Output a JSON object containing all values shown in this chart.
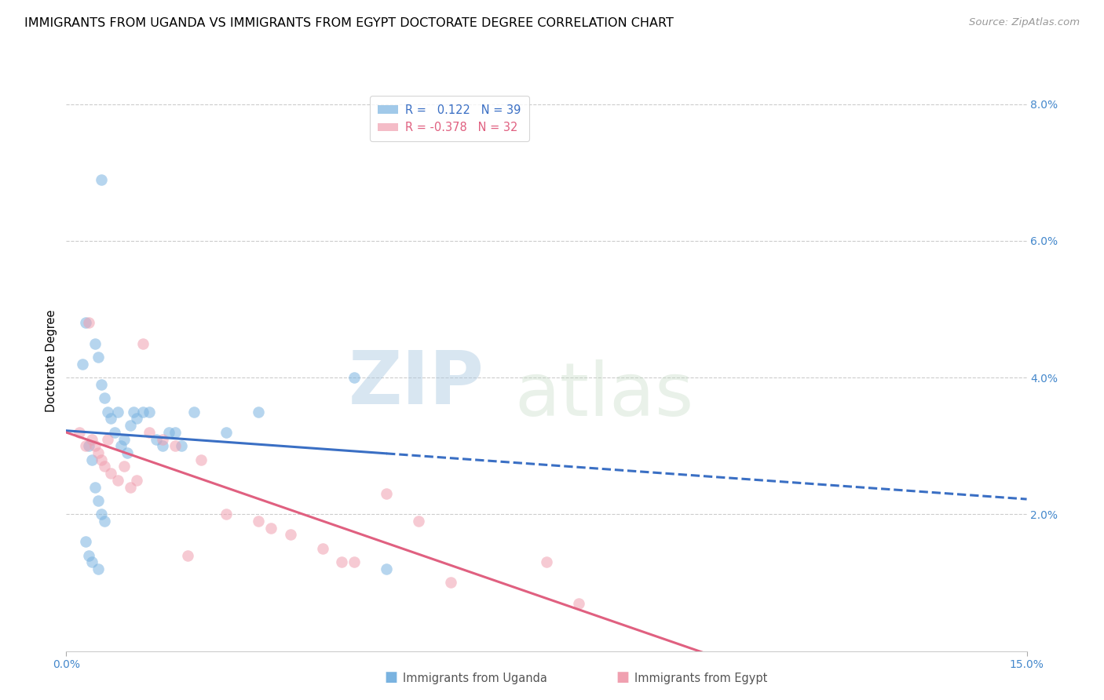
{
  "title": "IMMIGRANTS FROM UGANDA VS IMMIGRANTS FROM EGYPT DOCTORATE DEGREE CORRELATION CHART",
  "source": "Source: ZipAtlas.com",
  "ylabel": "Doctorate Degree",
  "xlim": [
    0.0,
    15.0
  ],
  "ylim": [
    0.0,
    8.5
  ],
  "xlabel_ticks": [
    "0.0%",
    "15.0%"
  ],
  "xlabel_vals": [
    0.0,
    15.0
  ],
  "ylabel_ticks": [
    "2.0%",
    "4.0%",
    "6.0%",
    "8.0%"
  ],
  "ylabel_vals": [
    2.0,
    4.0,
    6.0,
    8.0
  ],
  "legend_entry1": {
    "color": "#7ab3e0",
    "R": "0.122",
    "N": "39",
    "label": "Immigrants from Uganda"
  },
  "legend_entry2": {
    "color": "#f0a0b0",
    "R": "-0.378",
    "N": "32",
    "label": "Immigrants from Egypt"
  },
  "watermark_zip": "ZIP",
  "watermark_atlas": "atlas",
  "uganda_color": "#7ab3e0",
  "egypt_color": "#f0a0b0",
  "trendline_uganda_color": "#3a6fc4",
  "trendline_egypt_color": "#e06080",
  "uganda_x": [
    0.3,
    0.45,
    0.5,
    0.55,
    0.6,
    0.65,
    0.7,
    0.75,
    0.8,
    0.85,
    0.9,
    0.95,
    1.0,
    1.05,
    1.1,
    1.2,
    1.3,
    1.4,
    1.5,
    1.6,
    1.7,
    1.8,
    0.25,
    0.35,
    0.4,
    0.45,
    0.5,
    0.55,
    0.6,
    0.3,
    0.35,
    0.4,
    0.5,
    2.0,
    2.5,
    3.0,
    4.5,
    5.0,
    0.55
  ],
  "uganda_y": [
    4.8,
    4.5,
    4.3,
    3.9,
    3.7,
    3.5,
    3.4,
    3.2,
    3.5,
    3.0,
    3.1,
    2.9,
    3.3,
    3.5,
    3.4,
    3.5,
    3.5,
    3.1,
    3.0,
    3.2,
    3.2,
    3.0,
    4.2,
    3.0,
    2.8,
    2.4,
    2.2,
    2.0,
    1.9,
    1.6,
    1.4,
    1.3,
    1.2,
    3.5,
    3.2,
    3.5,
    4.0,
    1.2,
    6.9
  ],
  "egypt_x": [
    0.2,
    0.3,
    0.35,
    0.4,
    0.45,
    0.5,
    0.55,
    0.6,
    0.7,
    0.8,
    0.9,
    1.0,
    1.1,
    1.2,
    1.3,
    1.5,
    1.7,
    1.9,
    2.1,
    2.5,
    3.0,
    3.2,
    3.5,
    4.0,
    4.3,
    4.5,
    5.0,
    5.5,
    6.0,
    7.5,
    8.0,
    0.65
  ],
  "egypt_y": [
    3.2,
    3.0,
    4.8,
    3.1,
    3.0,
    2.9,
    2.8,
    2.7,
    2.6,
    2.5,
    2.7,
    2.4,
    2.5,
    4.5,
    3.2,
    3.1,
    3.0,
    1.4,
    2.8,
    2.0,
    1.9,
    1.8,
    1.7,
    1.5,
    1.3,
    1.3,
    2.3,
    1.9,
    1.0,
    1.3,
    0.7,
    3.1
  ],
  "dot_size": 110,
  "dot_alpha": 0.55,
  "trendline_linewidth": 2.2,
  "grid_color": "#cccccc",
  "grid_style": "--",
  "background_color": "#ffffff",
  "title_fontsize": 11.5,
  "axis_label_fontsize": 10.5,
  "tick_fontsize": 10,
  "tick_color": "#4488cc",
  "source_fontsize": 9.5,
  "source_color": "#999999",
  "legend_fontsize": 10.5
}
